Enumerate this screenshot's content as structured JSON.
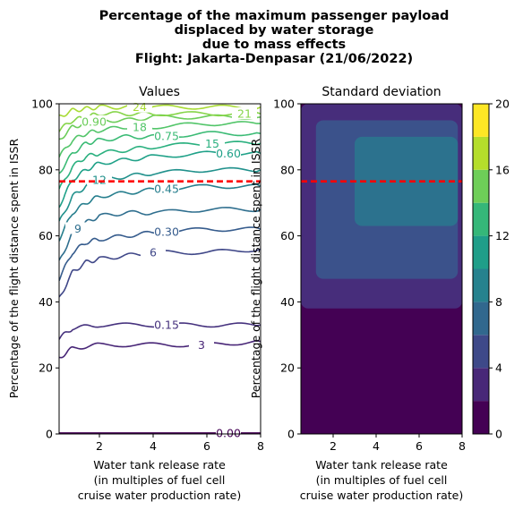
{
  "figure": {
    "suptitle_lines": [
      "Percentage of the maximum passenger payload",
      "displaced by water storage",
      "due to mass effects",
      "Flight: Jakarta-Denpasar (21/06/2022)"
    ]
  },
  "chart_data": [
    {
      "type": "line",
      "title": "Values",
      "xlabel_lines": [
        "Water tank release rate",
        "(in multiples of fuel cell",
        "cruise water production rate)"
      ],
      "ylabel": "Percentage of the flight distance spent in ISSR",
      "xlim": [
        0.5,
        8
      ],
      "ylim": [
        0,
        100
      ],
      "xticks": [
        2,
        4,
        6,
        8
      ],
      "yticks": [
        0,
        20,
        40,
        60,
        80,
        100
      ],
      "contour_levels": [
        {
          "label": "0.00",
          "color": "#440154",
          "x": [
            0.5,
            8
          ],
          "y": [
            0.3,
            0.3
          ]
        },
        {
          "label": "3",
          "color": "#482677",
          "x": [
            0.5,
            1.0,
            2.0,
            4.0,
            6.0,
            8.0
          ],
          "y": [
            23,
            26,
            27,
            27,
            27,
            28
          ]
        },
        {
          "label": "0.15",
          "color": "#46327e",
          "x": [
            0.5,
            1.0,
            2.0,
            4.0,
            6.0,
            8.0
          ],
          "y": [
            29,
            32,
            33,
            33,
            33,
            33
          ]
        },
        {
          "label": "6",
          "color": "#3f4788",
          "x": [
            0.5,
            1.0,
            1.5,
            2.0,
            3.0,
            4.0,
            6.0,
            8.0
          ],
          "y": [
            41,
            49,
            52,
            53,
            54,
            55,
            55,
            56
          ]
        },
        {
          "label": "0.30",
          "color": "#365c8d",
          "x": [
            0.5,
            1.0,
            1.5,
            2.0,
            3.0,
            4.0,
            6.0,
            8.0
          ],
          "y": [
            47,
            55,
            58,
            59,
            60,
            61,
            62,
            62
          ]
        },
        {
          "label": "9",
          "color": "#2e6e8e",
          "x": [
            0.5,
            1.0,
            1.5,
            2.0,
            3.0,
            4.0,
            6.0,
            8.0
          ],
          "y": [
            52,
            61,
            64,
            66,
            67,
            67,
            68,
            68
          ]
        },
        {
          "label": "0.45",
          "color": "#277f8e",
          "x": [
            0.5,
            1.0,
            1.5,
            2.0,
            3.0,
            4.0,
            6.0,
            8.0
          ],
          "y": [
            59,
            67,
            70,
            72,
            73,
            74,
            75,
            75
          ]
        },
        {
          "label": "12",
          "color": "#21918c",
          "x": [
            0.5,
            1.0,
            1.5,
            2.0,
            3.0,
            4.0,
            6.0,
            8.0
          ],
          "y": [
            64,
            72,
            75,
            77,
            78,
            79,
            80,
            80
          ]
        },
        {
          "label": "0.60",
          "color": "#1fa188",
          "x": [
            0.5,
            1.0,
            1.5,
            2.0,
            3.0,
            4.0,
            6.0,
            8.0
          ],
          "y": [
            69,
            77,
            80,
            82,
            83,
            84,
            85,
            85
          ]
        },
        {
          "label": "15",
          "color": "#2ab07f",
          "x": [
            0.5,
            1.0,
            1.5,
            2.0,
            3.0,
            4.0,
            6.0,
            8.0
          ],
          "y": [
            74,
            81,
            84,
            85,
            86,
            87,
            88,
            88
          ]
        },
        {
          "label": "0.75",
          "color": "#3bbb75",
          "x": [
            0.5,
            1.0,
            1.5,
            2.0,
            3.0,
            4.0,
            6.0,
            8.0
          ],
          "y": [
            79,
            85,
            88,
            89,
            90,
            90,
            91,
            91
          ]
        },
        {
          "label": "18",
          "color": "#52c569",
          "x": [
            0.5,
            1.0,
            1.5,
            2.0,
            3.0,
            4.0,
            6.0,
            8.0
          ],
          "y": [
            84,
            89,
            91,
            92,
            93,
            93,
            94,
            94
          ]
        },
        {
          "label": "0.90",
          "color": "#6ccd5a",
          "x": [
            0.5,
            1.0,
            1.5,
            2.0,
            3.0,
            4.0,
            6.0,
            8.0
          ],
          "y": [
            89,
            93,
            94,
            95,
            95,
            96,
            96,
            96
          ]
        },
        {
          "label": "21",
          "color": "#86d549",
          "x": [
            0.5,
            1.0,
            1.5,
            2.0,
            3.0,
            4.0,
            6.0,
            8.0
          ],
          "y": [
            92,
            95,
            96,
            97,
            97,
            97,
            97,
            97
          ]
        },
        {
          "label": "24",
          "color": "#a8db34",
          "x": [
            0.5,
            1.0,
            1.5,
            2.0,
            3.0,
            4.0,
            6.0,
            8.0
          ],
          "y": [
            96,
            98,
            98.5,
            99,
            99,
            99,
            99,
            99
          ]
        }
      ],
      "reference_line": {
        "y": 76.5,
        "color": "#ff0000",
        "style": "dashed"
      }
    },
    {
      "type": "heatmap",
      "title": "Standard deviation",
      "xlabel_lines": [
        "Water tank release rate",
        "(in multiples of fuel cell",
        "cruise water production rate)"
      ],
      "ylabel": "Percentage of the flight distance spent in ISSR",
      "xlim": [
        0.5,
        8
      ],
      "ylim": [
        0,
        100
      ],
      "xticks": [
        2,
        4,
        6,
        8
      ],
      "yticks": [
        0,
        20,
        40,
        60,
        80,
        100
      ],
      "bands": [
        {
          "range": [
            0,
            2
          ],
          "region_x": [
            0.5,
            8
          ],
          "region_y": [
            0,
            100
          ],
          "color": "#440154"
        },
        {
          "range": [
            2,
            4
          ],
          "region_x": [
            0.5,
            8
          ],
          "region_y": [
            38,
            100
          ],
          "color": "#472d7b"
        },
        {
          "range": [
            4,
            6
          ],
          "region_x": [
            1.2,
            7.8
          ],
          "region_y": [
            47,
            95
          ],
          "color": "#3b528b"
        },
        {
          "range": [
            6,
            8
          ],
          "region_x": [
            3.0,
            7.8
          ],
          "region_y": [
            63,
            90
          ],
          "color": "#2c728e"
        }
      ],
      "reference_line": {
        "y": 76.5,
        "color": "#ff0000",
        "style": "dashed"
      },
      "colorbar": {
        "ticks": [
          "0",
          "4",
          "8",
          "12",
          "16",
          "20"
        ],
        "levels": [
          0,
          2,
          4,
          6,
          8,
          10,
          12,
          14,
          16,
          18,
          20
        ],
        "colors": [
          "#440154",
          "#482878",
          "#3e4989",
          "#31688e",
          "#26828e",
          "#1f9e89",
          "#35b779",
          "#6ece58",
          "#b5de2b",
          "#fde725"
        ]
      }
    }
  ]
}
